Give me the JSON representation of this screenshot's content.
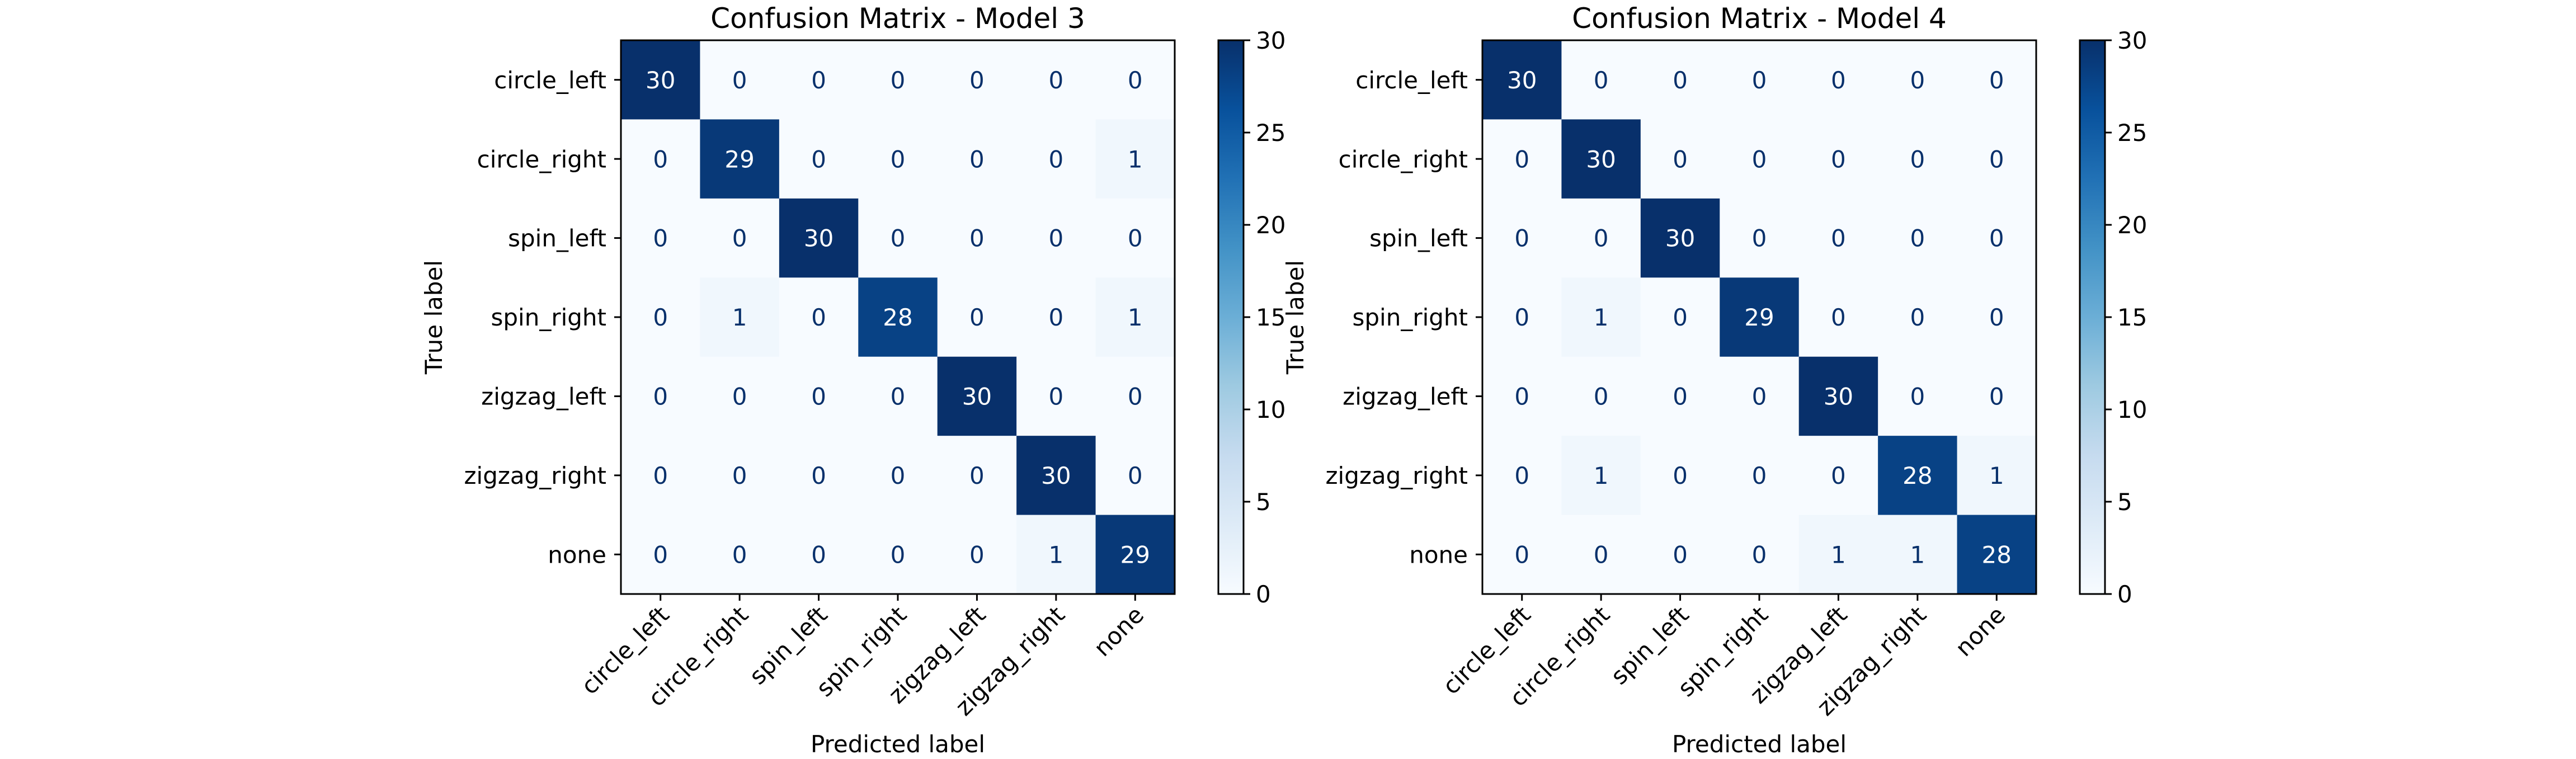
{
  "chart_data": [
    {
      "type": "heatmap",
      "title": "Confusion Matrix - Model 3",
      "xlabel": "Predicted label",
      "ylabel": "True label",
      "x_categories": [
        "circle_left",
        "circle_right",
        "spin_left",
        "spin_right",
        "zigzag_left",
        "zigzag_right",
        "none"
      ],
      "y_categories": [
        "circle_left",
        "circle_right",
        "spin_left",
        "spin_right",
        "zigzag_left",
        "zigzag_right",
        "none"
      ],
      "values": [
        [
          30,
          0,
          0,
          0,
          0,
          0,
          0
        ],
        [
          0,
          29,
          0,
          0,
          0,
          0,
          1
        ],
        [
          0,
          0,
          30,
          0,
          0,
          0,
          0
        ],
        [
          0,
          1,
          0,
          28,
          0,
          0,
          1
        ],
        [
          0,
          0,
          0,
          0,
          30,
          0,
          0
        ],
        [
          0,
          0,
          0,
          0,
          0,
          30,
          0
        ],
        [
          0,
          0,
          0,
          0,
          0,
          1,
          29
        ]
      ],
      "colorbar": {
        "min": 0,
        "max": 30,
        "ticks": [
          0,
          5,
          10,
          15,
          20,
          25,
          30
        ]
      },
      "colormap": "Blues"
    },
    {
      "type": "heatmap",
      "title": "Confusion Matrix - Model 4",
      "xlabel": "Predicted label",
      "ylabel": "True label",
      "x_categories": [
        "circle_left",
        "circle_right",
        "spin_left",
        "spin_right",
        "zigzag_left",
        "zigzag_right",
        "none"
      ],
      "y_categories": [
        "circle_left",
        "circle_right",
        "spin_left",
        "spin_right",
        "zigzag_left",
        "zigzag_right",
        "none"
      ],
      "values": [
        [
          30,
          0,
          0,
          0,
          0,
          0,
          0
        ],
        [
          0,
          30,
          0,
          0,
          0,
          0,
          0
        ],
        [
          0,
          0,
          30,
          0,
          0,
          0,
          0
        ],
        [
          0,
          1,
          0,
          29,
          0,
          0,
          0
        ],
        [
          0,
          0,
          0,
          0,
          30,
          0,
          0
        ],
        [
          0,
          1,
          0,
          0,
          0,
          28,
          1
        ],
        [
          0,
          0,
          0,
          0,
          1,
          1,
          28
        ]
      ],
      "colorbar": {
        "min": 0,
        "max": 30,
        "ticks": [
          0,
          5,
          10,
          15,
          20,
          25,
          30
        ]
      },
      "colormap": "Blues"
    }
  ]
}
